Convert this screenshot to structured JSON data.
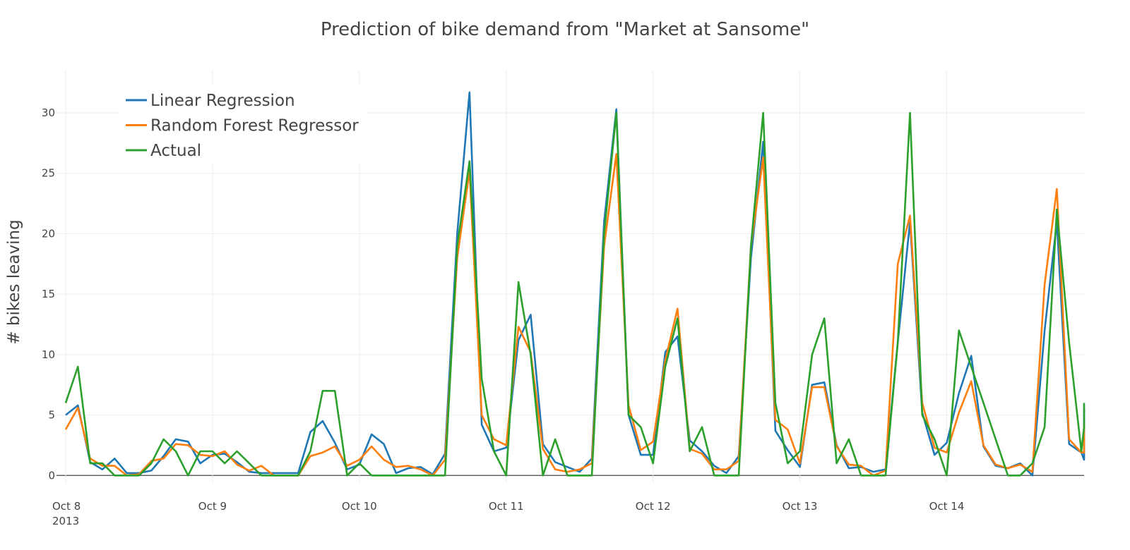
{
  "chart_data": {
    "type": "line",
    "title": "Prediction of bike demand from \"Market at Sansome\"",
    "xlabel": "",
    "ylabel": "# bikes leaving",
    "x_start": "2013-10-08T00:00",
    "x_step_hours": 2,
    "x_ticks": [
      "Oct 8",
      "Oct 9",
      "Oct 10",
      "Oct 11",
      "Oct 12",
      "Oct 13",
      "Oct 14"
    ],
    "x_tick_year": "2013",
    "y_ticks": [
      0,
      5,
      10,
      15,
      20,
      25,
      30
    ],
    "ylim": [
      -1.5,
      33.5
    ],
    "grid": true,
    "legend_position": "top-left",
    "series": [
      {
        "name": "Linear Regression",
        "color": "#1f77b4",
        "values": [
          5,
          5.8,
          1.1,
          0.5,
          1.4,
          0.2,
          0.2,
          0.4,
          1.6,
          3.0,
          2.8,
          1.0,
          1.7,
          1.8,
          1.1,
          0.3,
          0.2,
          0.2,
          0.2,
          0.2,
          3.6,
          4.5,
          2.7,
          0.5,
          0.9,
          3.4,
          2.6,
          0.2,
          0.6,
          0.7,
          0.1,
          1.8,
          20,
          31.7,
          4.2,
          2.0,
          2.3,
          11.2,
          13.3,
          2.6,
          1.1,
          0.7,
          0.3,
          1.4,
          21,
          30.3,
          5.0,
          1.7,
          1.7,
          10.2,
          11.5,
          2.9,
          2.0,
          0.8,
          0.2,
          1.6,
          18,
          27.6,
          3.7,
          2.1,
          0.7,
          7.5,
          7.7,
          2.5,
          0.6,
          0.7,
          0.3,
          0.5,
          11,
          21,
          5.2,
          1.7,
          2.7,
          6.8,
          9.9,
          2.4,
          0.8,
          0.6,
          1.0,
          0.0,
          12,
          21,
          2.6,
          1.9,
          1.3,
          5.6
        ]
      },
      {
        "name": "Random Forest  Regressor",
        "color": "#ff7f0e",
        "values": [
          3.8,
          5.6,
          1.4,
          0.8,
          0.8,
          0.0,
          0.1,
          1.2,
          1.4,
          2.6,
          2.5,
          1.7,
          1.6,
          2.0,
          0.9,
          0.4,
          0.8,
          0.0,
          0.0,
          0.0,
          1.6,
          1.9,
          2.4,
          0.8,
          1.3,
          2.4,
          1.3,
          0.7,
          0.8,
          0.5,
          0.0,
          1.3,
          18,
          25.2,
          5.0,
          3.0,
          2.5,
          12.3,
          10.2,
          2.2,
          0.5,
          0.3,
          0.5,
          1.0,
          19,
          26.6,
          5.8,
          2.1,
          2.8,
          9.5,
          13.8,
          2.2,
          1.8,
          0.5,
          0.5,
          1.2,
          19,
          26.3,
          4.6,
          3.8,
          1.0,
          7.3,
          7.3,
          2.4,
          0.9,
          0.8,
          0.0,
          0.4,
          17.5,
          21.5,
          6.0,
          2.3,
          1.9,
          5.2,
          7.8,
          2.5,
          0.9,
          0.6,
          0.9,
          0.3,
          15.8,
          23.7,
          3.0,
          1.9,
          1.9,
          4.2
        ]
      },
      {
        "name": "Actual",
        "color": "#2ca02c",
        "values": [
          6,
          9,
          1,
          1,
          0,
          0,
          0,
          1,
          3,
          2,
          0,
          2,
          2,
          1,
          2,
          1,
          0,
          0,
          0,
          0,
          2,
          7,
          7,
          0,
          1,
          0,
          0,
          0,
          0,
          0,
          0,
          0,
          19,
          26,
          8,
          2,
          0,
          16,
          10,
          0,
          3,
          0,
          0,
          0,
          20,
          30,
          5,
          4,
          1,
          9,
          13,
          2,
          4,
          0,
          0,
          0,
          19,
          30,
          6,
          1,
          2,
          10,
          13,
          1,
          3,
          0,
          0,
          0,
          11,
          30,
          5,
          3,
          0,
          12,
          9,
          6,
          3,
          0,
          0,
          1,
          4,
          22,
          11,
          2,
          4,
          6
        ]
      }
    ]
  }
}
